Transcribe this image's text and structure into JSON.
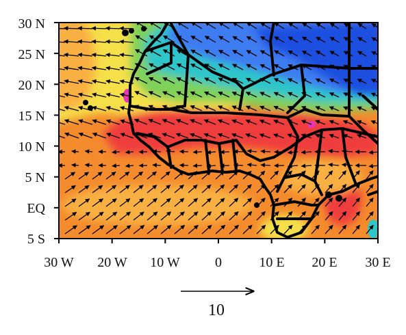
{
  "map": {
    "region": "West Africa and tropical eastern Atlantic",
    "fields": [
      "shaded scalar field",
      "wind vectors"
    ],
    "lon_range": [
      -30,
      30
    ],
    "lat_range": [
      -5,
      30
    ],
    "colors": {
      "red": "#ef3d3d",
      "orange": "#f48b2c",
      "light_orange": "#f9b043",
      "yellow": "#f5e04a",
      "green": "#7fd15a",
      "cyan": "#2fc6c9",
      "blue": "#3c7bf1",
      "dark_blue": "#1f4fe0",
      "magenta": "#e636b8",
      "boundaries": "#000000"
    }
  },
  "axes": {
    "y_ticks": [
      "30 N",
      "25 N",
      "20 N",
      "15 N",
      "10 N",
      "5 N",
      "EQ",
      "5 S"
    ],
    "x_ticks": [
      "30 W",
      "20 W",
      "10 W",
      "0",
      "10 E",
      "20 E",
      "30 E"
    ]
  },
  "reference_vector": {
    "label": "10"
  }
}
